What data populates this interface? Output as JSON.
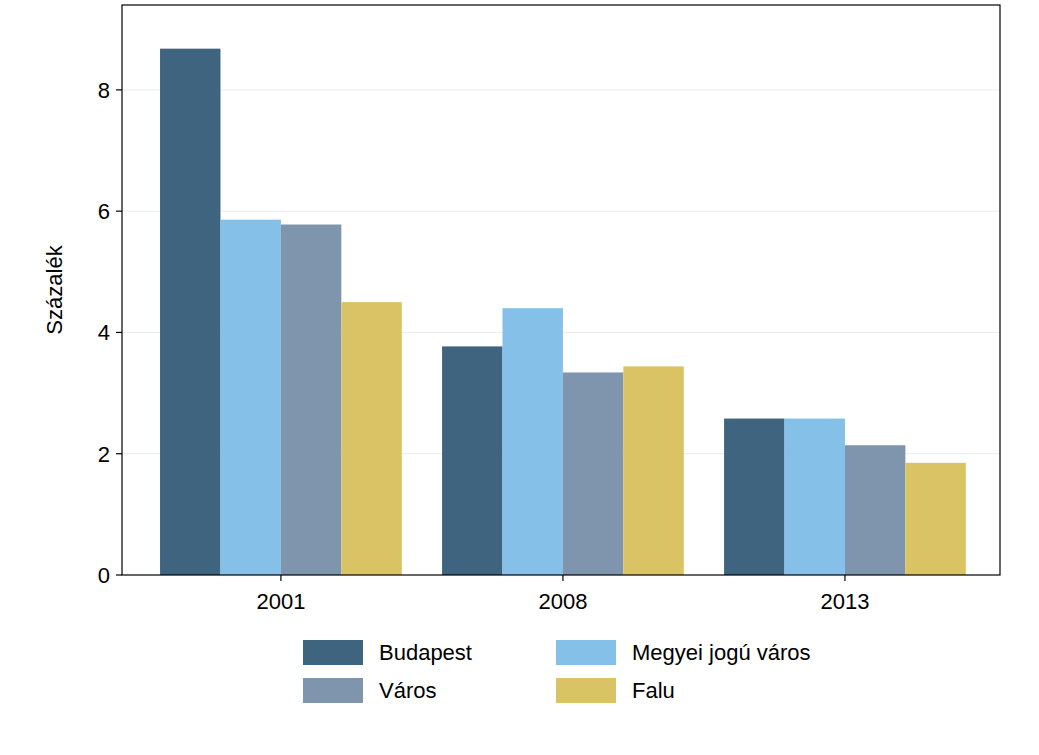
{
  "chart_data": {
    "type": "bar",
    "y_label": "Százalék",
    "categories": [
      "2001",
      "2008",
      "2013"
    ],
    "series": [
      {
        "name": "Budapest",
        "color": "#3e6480",
        "values": [
          8.68,
          3.77,
          2.58
        ]
      },
      {
        "name": "Megyei jogú város",
        "color": "#84c0e8",
        "values": [
          5.86,
          4.4,
          2.58
        ]
      },
      {
        "name": "Város",
        "color": "#7f95ae",
        "values": [
          5.78,
          3.34,
          2.14
        ]
      },
      {
        "name": "Falu",
        "color": "#d9c365",
        "values": [
          4.5,
          3.44,
          1.85
        ]
      }
    ],
    "ylim": [
      0,
      9.4
    ],
    "yticks": [
      0,
      2,
      4,
      6,
      8
    ],
    "grid": true,
    "legend": "bottom"
  }
}
